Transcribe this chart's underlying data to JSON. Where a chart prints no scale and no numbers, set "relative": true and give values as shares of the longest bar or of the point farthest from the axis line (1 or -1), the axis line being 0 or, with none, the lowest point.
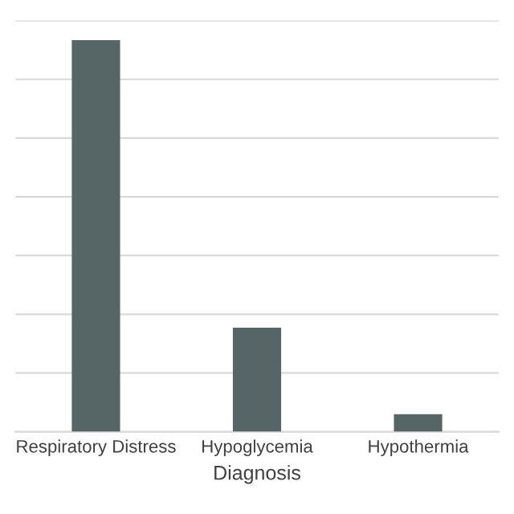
{
  "chart_data": {
    "type": "bar",
    "xlabel": "Diagnosis",
    "categories": [
      "Respiratory Distress",
      "Hypoglycemia",
      "Hypothermia"
    ],
    "values": [
      1,
      0.266,
      0.045
    ],
    "color": "#566566",
    "relative": true,
    "grid": "y"
  }
}
